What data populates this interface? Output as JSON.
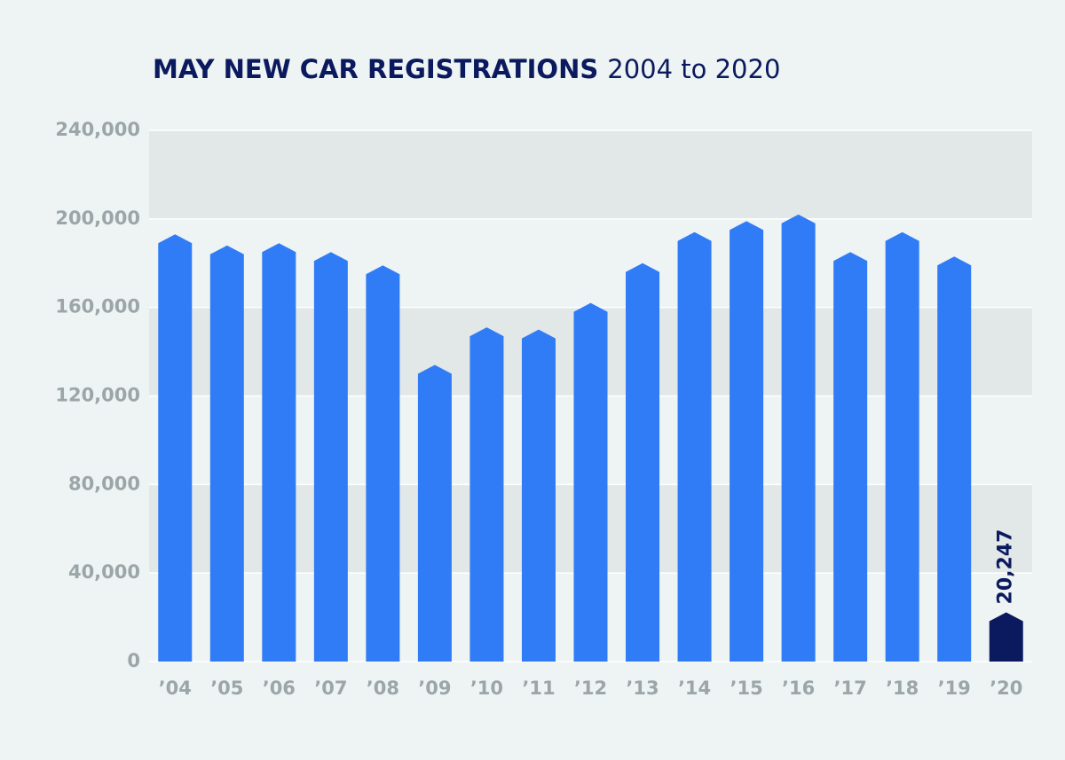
{
  "chart_data": {
    "type": "bar",
    "title": "MAY NEW CAR REGISTRATIONS",
    "subtitle": "2004 to 2020",
    "categories": [
      "’04",
      "’05",
      "’06",
      "’07",
      "’08",
      "’09",
      "’10",
      "’11",
      "’12",
      "’13",
      "’14",
      "’15",
      "’16",
      "’17",
      "’18",
      "’19",
      "’20"
    ],
    "values": [
      191000,
      186000,
      187000,
      183000,
      177000,
      132000,
      149000,
      148000,
      160000,
      178000,
      192000,
      197000,
      200000,
      183000,
      192000,
      181000,
      20247
    ],
    "value_labels": [
      null,
      null,
      null,
      null,
      null,
      null,
      null,
      null,
      null,
      null,
      null,
      null,
      null,
      null,
      null,
      null,
      "20,247"
    ],
    "colors": [
      "#2f7cf6",
      "#2f7cf6",
      "#2f7cf6",
      "#2f7cf6",
      "#2f7cf6",
      "#2f7cf6",
      "#2f7cf6",
      "#2f7cf6",
      "#2f7cf6",
      "#2f7cf6",
      "#2f7cf6",
      "#2f7cf6",
      "#2f7cf6",
      "#2f7cf6",
      "#2f7cf6",
      "#2f7cf6",
      "#0b1a5e"
    ],
    "ylim": [
      0,
      240000
    ],
    "yticks": [
      0,
      {
        "value": 40000,
        "label": "40,000"
      },
      {
        "value": 80000,
        "label": "80,000"
      },
      {
        "value": 120000,
        "label": "120,000"
      },
      {
        "value": 160000,
        "label": "160,000"
      },
      {
        "value": 200000,
        "label": "200,000"
      },
      {
        "value": 240000,
        "label": "240,000"
      }
    ],
    "grid": true
  }
}
